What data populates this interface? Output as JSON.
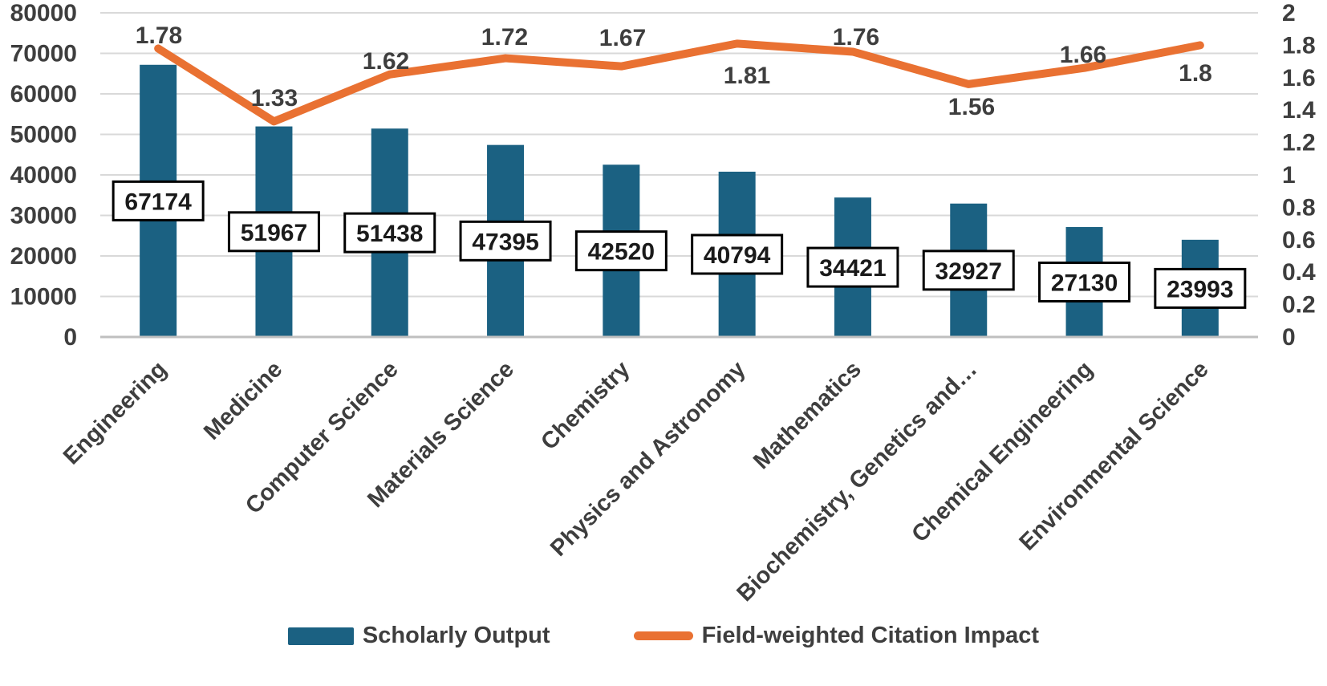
{
  "chart_data": {
    "type": "bar-line-combo",
    "categories": [
      "Engineering",
      "Medicine",
      "Computer Science",
      "Materials Science",
      "Chemistry",
      "Physics and Astronomy",
      "Mathematics",
      "Biochemistry, Genetics and…",
      "Chemical Engineering",
      "Environmental Science"
    ],
    "series": [
      {
        "name": "Scholarly Output",
        "type": "bar",
        "axis": "left",
        "color": "#1B6182",
        "values": [
          67174,
          51967,
          51438,
          47395,
          42520,
          40794,
          34421,
          32927,
          27130,
          23993
        ],
        "data_labels": [
          "67174",
          "51967",
          "51438",
          "47395",
          "42520",
          "40794",
          "34421",
          "32927",
          "27130",
          "23993"
        ]
      },
      {
        "name": "Field-weighted Citation Impact",
        "type": "line",
        "axis": "right",
        "color": "#E97132",
        "values": [
          1.78,
          1.33,
          1.62,
          1.72,
          1.67,
          1.81,
          1.76,
          1.56,
          1.66,
          1.8
        ],
        "data_labels": [
          "1.78",
          "1.33",
          "1.62",
          "1.72",
          "1.67",
          "1.81",
          "1.76",
          "1.56",
          "1.66",
          "1.8"
        ],
        "label_sides": [
          "above",
          "above",
          "above",
          "above",
          "above",
          "below",
          "above",
          "below",
          "above",
          "below"
        ]
      }
    ],
    "left_axis": {
      "min": 0,
      "max": 80000,
      "step": 10000,
      "ticks": [
        "80000",
        "70000",
        "60000",
        "50000",
        "40000",
        "30000",
        "20000",
        "10000",
        "0"
      ]
    },
    "right_axis": {
      "min": 0,
      "max": 2,
      "step": 0.2,
      "ticks": [
        "2",
        "1.8",
        "1.6",
        "1.4",
        "1.2",
        "1",
        "0.8",
        "0.6",
        "0.4",
        "0.2",
        "0"
      ]
    },
    "grid": true,
    "legend_position": "bottom",
    "title": "",
    "xlabel": "",
    "ylabel": ""
  },
  "legend": {
    "bar_label": "Scholarly Output",
    "line_label": "Field-weighted Citation Impact"
  },
  "colors": {
    "bar": "#1B6182",
    "line": "#E97132",
    "axis_text": "#3E3E3E",
    "category_text": "#3E3E3E",
    "value_box_text": "#1A1A1A",
    "value_box_fill": "#FFFFFF",
    "value_box_border": "#000000",
    "gridline": "#D9D9D9",
    "axis_line": "#BFBFBF",
    "background": "#FFFFFF"
  }
}
